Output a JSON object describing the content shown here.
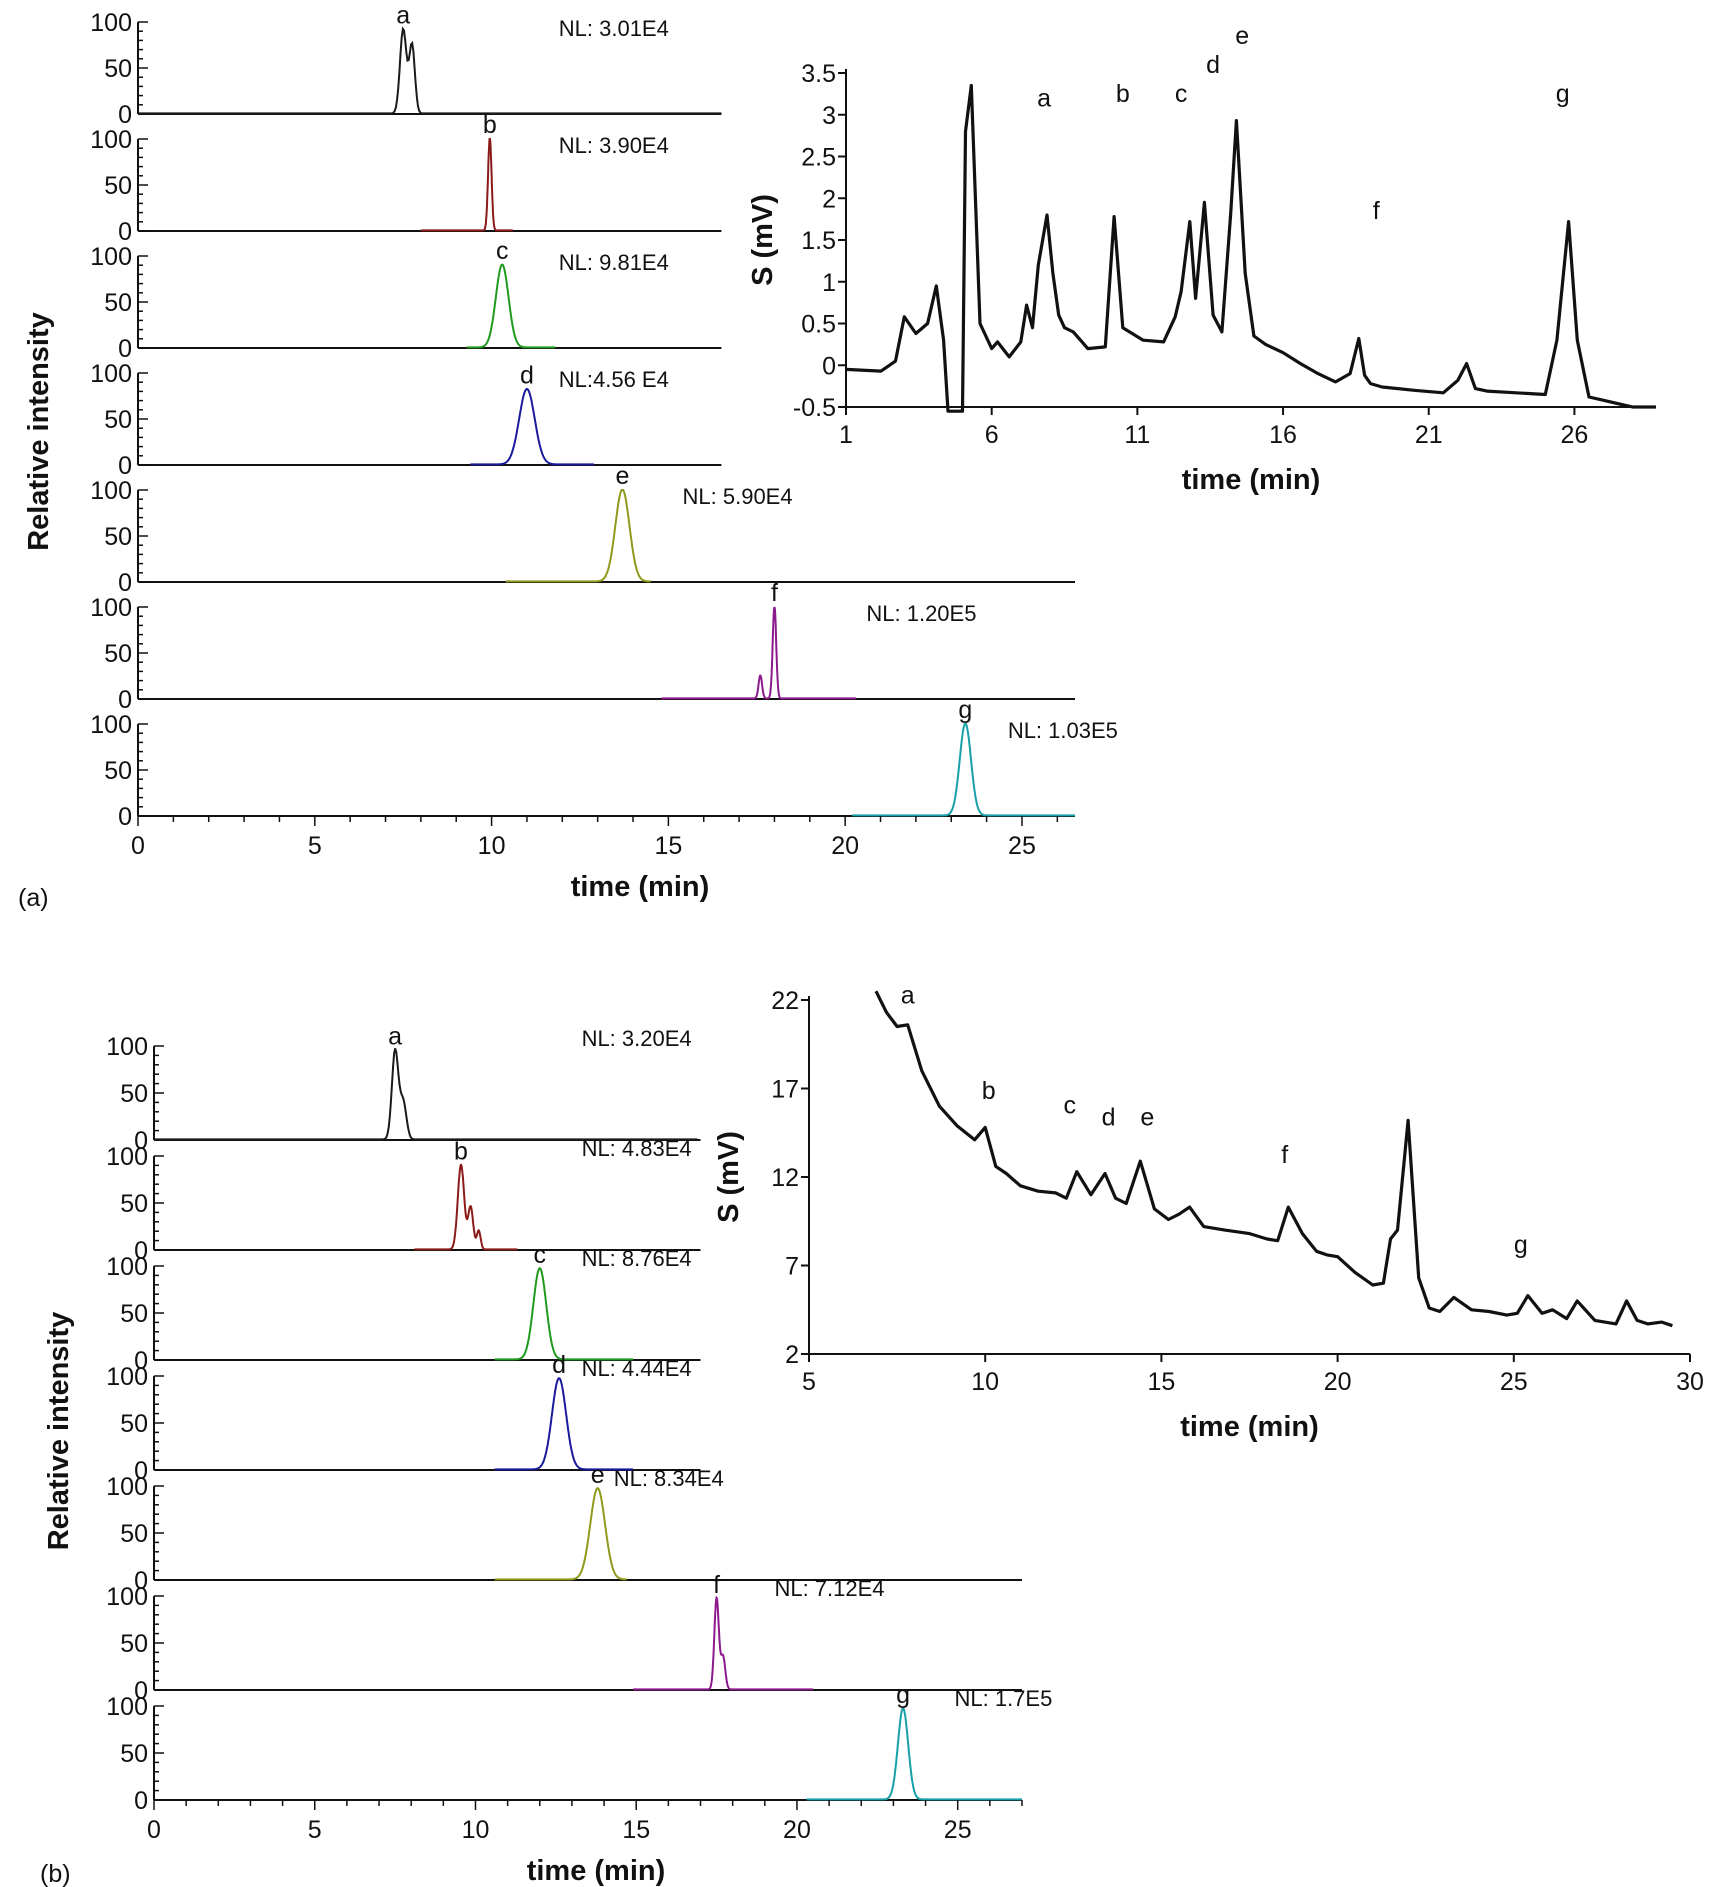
{
  "panel_a_label": "(a)",
  "panel_b_label": "(b)",
  "chart_data": [
    {
      "id": "a-ms",
      "type": "line",
      "xlabel": "time (min)",
      "ylabel": "Relative intensity",
      "xlim": [
        0,
        26.5
      ],
      "xticks": [
        0,
        5,
        10,
        15,
        20,
        25
      ],
      "ylim": [
        0,
        100
      ],
      "yticks": [
        0,
        50,
        100
      ],
      "traces": [
        {
          "peak": "a",
          "nl": "NL: 3.01E4",
          "color": "#1a1a1a",
          "x_range": [
            0,
            16.5
          ],
          "peaks": [
            {
              "x": 7.5,
              "h": 92,
              "w": 0.09
            },
            {
              "x": 7.75,
              "h": 75,
              "w": 0.08
            }
          ]
        },
        {
          "peak": "b",
          "nl": "NL: 3.90E4",
          "color": "#8b1a1a",
          "x_range": [
            8,
            10.6
          ],
          "peaks": [
            {
              "x": 9.95,
              "h": 100,
              "w": 0.05
            }
          ]
        },
        {
          "peak": "c",
          "nl": "NL: 9.81E4",
          "color": "#1f9a1f",
          "x_range": [
            9.3,
            11.8
          ],
          "peaks": [
            {
              "x": 10.3,
              "h": 90,
              "w": 0.18
            }
          ]
        },
        {
          "peak": "d",
          "nl": "NL:4.56 E4",
          "color": "#1a1a9c",
          "x_range": [
            9.4,
            12.9
          ],
          "peaks": [
            {
              "x": 11.0,
              "h": 82,
              "w": 0.22
            }
          ]
        },
        {
          "peak": "e",
          "nl": "NL: 5.90E4",
          "color": "#8f9a1c",
          "x_range": [
            10.4,
            14.5
          ],
          "peaks": [
            {
              "x": 13.7,
              "h": 100,
              "w": 0.2
            }
          ]
        },
        {
          "peak": "f",
          "nl": "NL: 1.20E5",
          "color": "#8c1a8c",
          "x_range": [
            14.8,
            20.3
          ],
          "peaks": [
            {
              "x": 17.6,
              "h": 25,
              "w": 0.05
            },
            {
              "x": 18.0,
              "h": 100,
              "w": 0.05
            }
          ]
        },
        {
          "peak": "g",
          "nl": "NL: 1.03E5",
          "color": "#17a0a8",
          "x_range": [
            20.2,
            26.5
          ],
          "peaks": [
            {
              "x": 23.4,
              "h": 100,
              "w": 0.16
            }
          ]
        }
      ]
    },
    {
      "id": "a-uv",
      "type": "line",
      "xlabel": "time (min)",
      "ylabel": "S (mV)",
      "xlim": [
        1,
        28.8
      ],
      "xticks": [
        1,
        6,
        11,
        16,
        21,
        26
      ],
      "ylim": [
        -0.5,
        3.5
      ],
      "yticks": [
        -0.5,
        0,
        0.5,
        1,
        1.5,
        2,
        2.5,
        3,
        3.5
      ],
      "ytick_labels": [
        "-0.5",
        "0",
        "0.5",
        "1",
        "1.5",
        "2",
        "2.5",
        "3",
        "3.5"
      ],
      "series": [
        {
          "x": [
            1.0,
            2.2,
            2.7,
            3.0,
            3.4,
            3.8,
            4.1,
            4.35,
            4.5,
            4.6,
            5.0,
            5.1,
            5.3,
            5.6,
            6.0,
            6.2,
            6.6,
            7.0,
            7.2,
            7.4,
            7.6,
            7.9,
            8.1,
            8.3,
            8.5,
            8.8,
            9.3,
            9.9,
            10.2,
            10.5,
            11.2,
            11.9,
            12.3,
            12.5,
            12.8,
            13.0,
            13.3,
            13.6,
            13.9,
            14.2,
            14.4,
            14.7,
            15.0,
            15.4,
            16.0,
            16.6,
            17.2,
            17.8,
            18.3,
            18.6,
            18.8,
            19.0,
            19.4,
            20.5,
            21.5,
            22.0,
            22.3,
            22.6,
            23.0,
            24.0,
            25.0,
            25.4,
            25.8,
            26.1,
            26.5,
            27.0,
            27.5,
            28.0,
            28.8
          ],
          "y": [
            -0.05,
            -0.07,
            0.05,
            0.58,
            0.38,
            0.5,
            0.95,
            0.3,
            -0.55,
            -0.55,
            -0.55,
            2.8,
            3.35,
            0.5,
            0.2,
            0.28,
            0.1,
            0.28,
            0.72,
            0.45,
            1.2,
            1.8,
            1.1,
            0.6,
            0.45,
            0.4,
            0.2,
            0.22,
            1.78,
            0.45,
            0.3,
            0.28,
            0.58,
            0.88,
            1.72,
            0.8,
            1.95,
            0.6,
            0.4,
            1.8,
            2.93,
            1.1,
            0.35,
            0.25,
            0.15,
            0.02,
            -0.1,
            -0.2,
            -0.1,
            0.32,
            -0.12,
            -0.22,
            -0.26,
            -0.3,
            -0.33,
            -0.18,
            0.02,
            -0.28,
            -0.31,
            -0.33,
            -0.35,
            0.3,
            1.72,
            0.3,
            -0.38,
            -0.42,
            -0.46,
            -0.5,
            -0.5
          ]
        }
      ],
      "peak_labels": [
        {
          "text": "a",
          "x": 7.8,
          "y": 3.1
        },
        {
          "text": "b",
          "x": 10.5,
          "y": 3.15
        },
        {
          "text": "c",
          "x": 12.5,
          "y": 3.15
        },
        {
          "text": "d",
          "x": 13.6,
          "y": 3.5
        },
        {
          "text": "e",
          "x": 14.6,
          "y": 3.85
        },
        {
          "text": "f",
          "x": 19.2,
          "y": 1.75
        },
        {
          "text": "g",
          "x": 25.6,
          "y": 3.15
        }
      ]
    },
    {
      "id": "b-ms",
      "type": "line",
      "xlabel": "time (min)",
      "ylabel": "Relative intensity",
      "xlim": [
        0,
        27
      ],
      "xticks": [
        0,
        5,
        10,
        15,
        20,
        25
      ],
      "ylim": [
        0,
        100
      ],
      "yticks": [
        0,
        50,
        100
      ],
      "traces": [
        {
          "peak": "a",
          "nl": "NL: 3.20E4",
          "color": "#1a1a1a",
          "x_range": [
            0,
            16.9
          ],
          "peaks": [
            {
              "x": 7.5,
              "h": 95,
              "w": 0.1
            },
            {
              "x": 7.75,
              "h": 40,
              "w": 0.1
            }
          ]
        },
        {
          "peak": "b",
          "nl": "NL: 4.83E4",
          "color": "#8b1a1a",
          "x_range": [
            8.1,
            11.3
          ],
          "peaks": [
            {
              "x": 9.55,
              "h": 90,
              "w": 0.1
            },
            {
              "x": 9.85,
              "h": 45,
              "w": 0.08
            },
            {
              "x": 10.1,
              "h": 20,
              "w": 0.06
            }
          ]
        },
        {
          "peak": "c",
          "nl": "NL: 8.76E4",
          "color": "#1f9a1f",
          "x_range": [
            10.6,
            14.9
          ],
          "peaks": [
            {
              "x": 12.0,
              "h": 97,
              "w": 0.2
            }
          ]
        },
        {
          "peak": "d",
          "nl": "NL: 4.44E4",
          "color": "#1a1a9c",
          "x_range": [
            10.6,
            14.9
          ],
          "peaks": [
            {
              "x": 12.6,
              "h": 97,
              "w": 0.22
            }
          ]
        },
        {
          "peak": "e",
          "nl": "NL: 8.34E4",
          "color": "#8f9a1c",
          "x_range": [
            10.6,
            14.7
          ],
          "peaks": [
            {
              "x": 13.8,
              "h": 97,
              "w": 0.23
            }
          ]
        },
        {
          "peak": "f",
          "nl": "NL: 7.12E4",
          "color": "#8c1a8c",
          "x_range": [
            14.9,
            20.5
          ],
          "peaks": [
            {
              "x": 17.5,
              "h": 97,
              "w": 0.07
            },
            {
              "x": 17.7,
              "h": 35,
              "w": 0.07
            }
          ]
        },
        {
          "peak": "g",
          "nl": "NL: 1.7E5",
          "color": "#17a0a8",
          "x_range": [
            20.3,
            27.0
          ],
          "peaks": [
            {
              "x": 23.3,
              "h": 97,
              "w": 0.16
            }
          ]
        }
      ]
    },
    {
      "id": "b-uv",
      "type": "line",
      "xlabel": "time (min)",
      "ylabel": "S (mV)",
      "xlim": [
        5,
        30
      ],
      "xticks": [
        5,
        10,
        15,
        20,
        25,
        30
      ],
      "ylim": [
        2,
        22
      ],
      "yticks": [
        2,
        7,
        12,
        17,
        22
      ],
      "ytick_labels": [
        "2",
        "7",
        "12",
        "17",
        "22"
      ],
      "series": [
        {
          "x": [
            6.9,
            7.2,
            7.5,
            7.8,
            8.2,
            8.7,
            9.2,
            9.7,
            10.0,
            10.3,
            10.6,
            11.0,
            11.5,
            12.0,
            12.3,
            12.6,
            13.0,
            13.4,
            13.7,
            14.0,
            14.4,
            14.8,
            15.2,
            15.5,
            15.8,
            16.2,
            16.8,
            17.5,
            18.0,
            18.3,
            18.6,
            19.0,
            19.4,
            19.7,
            20.0,
            20.5,
            21.0,
            21.3,
            21.5,
            21.7,
            22.0,
            22.3,
            22.6,
            22.9,
            23.3,
            23.8,
            24.3,
            24.8,
            25.1,
            25.4,
            25.8,
            26.1,
            26.5,
            26.8,
            27.3,
            27.9,
            28.2,
            28.5,
            28.8,
            29.2,
            29.5
          ],
          "y": [
            22.5,
            21.3,
            20.5,
            20.6,
            18.0,
            16.0,
            14.9,
            14.1,
            14.8,
            12.6,
            12.2,
            11.5,
            11.2,
            11.1,
            10.8,
            12.3,
            11.0,
            12.2,
            10.8,
            10.5,
            12.9,
            10.2,
            9.6,
            9.9,
            10.3,
            9.2,
            9.0,
            8.8,
            8.5,
            8.4,
            10.3,
            8.8,
            7.8,
            7.6,
            7.5,
            6.6,
            5.9,
            6.0,
            8.5,
            9.0,
            15.2,
            6.3,
            4.6,
            4.4,
            5.2,
            4.5,
            4.4,
            4.2,
            4.3,
            5.3,
            4.3,
            4.5,
            4.0,
            5.0,
            3.9,
            3.7,
            5.0,
            3.9,
            3.7,
            3.8,
            3.6
          ]
        }
      ],
      "peak_labels": [
        {
          "text": "a",
          "x": 7.8,
          "y": 21.8
        },
        {
          "text": "b",
          "x": 10.1,
          "y": 16.4
        },
        {
          "text": "c",
          "x": 12.4,
          "y": 15.6
        },
        {
          "text": "d",
          "x": 13.5,
          "y": 14.9
        },
        {
          "text": "e",
          "x": 14.6,
          "y": 14.9
        },
        {
          "text": "f",
          "x": 18.5,
          "y": 12.8
        },
        {
          "text": "g",
          "x": 25.2,
          "y": 7.7
        }
      ]
    }
  ]
}
